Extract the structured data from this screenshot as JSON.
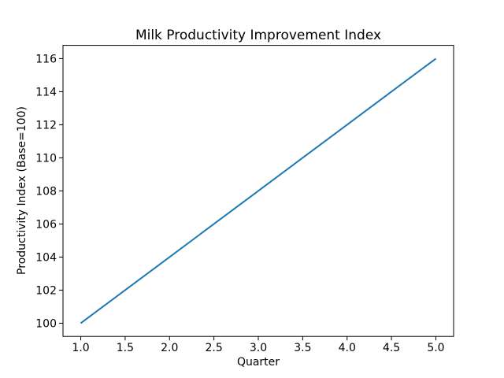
{
  "figure": {
    "background": "#ffffff"
  },
  "chart_data": {
    "type": "line",
    "title": "Milk Productivity Improvement Index",
    "xlabel": "Quarter",
    "ylabel": "Productivity Index (Base=100)",
    "x": [
      1,
      2,
      3,
      4,
      5
    ],
    "y": [
      100,
      104,
      108,
      112,
      116
    ],
    "xlim": [
      0.8,
      5.2
    ],
    "ylim": [
      99.2,
      116.8
    ],
    "xtick_values": [
      1.0,
      1.5,
      2.0,
      2.5,
      3.0,
      3.5,
      4.0,
      4.5,
      5.0
    ],
    "xtick_labels": [
      "1.0",
      "1.5",
      "2.0",
      "2.5",
      "3.0",
      "3.5",
      "4.0",
      "4.5",
      "5.0"
    ],
    "ytick_values": [
      100,
      102,
      104,
      106,
      108,
      110,
      112,
      114,
      116
    ],
    "ytick_labels": [
      "100",
      "102",
      "104",
      "106",
      "108",
      "110",
      "112",
      "114",
      "116"
    ],
    "line_color": "#1f77b4",
    "axis_color": "#000000",
    "grid": false,
    "legend_position": "none"
  }
}
